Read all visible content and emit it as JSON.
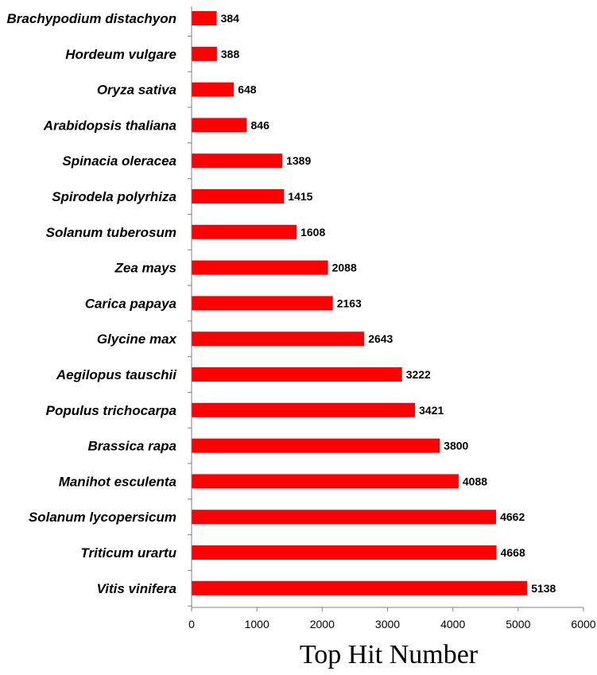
{
  "chart_data": {
    "type": "bar",
    "orientation": "horizontal",
    "categories": [
      "Brachypodium distachyon",
      "Hordeum vulgare",
      "Oryza sativa",
      "Arabidopsis thaliana",
      "Spinacia oleracea",
      "Spirodela polyrhiza",
      "Solanum tuberosum",
      "Zea mays",
      "Carica papaya",
      "Glycine max",
      "Aegilopus tauschii",
      "Populus trichocarpa",
      "Brassica rapa",
      "Manihot esculenta",
      "Solanum lycopersicum",
      "Triticum urartu",
      "Vitis vinifera"
    ],
    "values": [
      384,
      388,
      648,
      846,
      1389,
      1415,
      1608,
      2088,
      2163,
      2643,
      3222,
      3421,
      3800,
      4088,
      4662,
      4668,
      5138
    ],
    "data_labels": [
      "384",
      "388",
      "648",
      "846",
      "1389",
      "1415",
      "1608",
      "2088",
      "2163",
      "2643",
      "3222",
      "3421",
      "3800",
      "4088",
      "4662",
      "4668",
      "5138"
    ],
    "xlabel": "Top Hit Number",
    "xlim": [
      0,
      6000
    ],
    "x_ticks": [
      0,
      1000,
      2000,
      3000,
      4000,
      5000,
      6000
    ],
    "x_tick_labels": [
      "0",
      "1000",
      "2000",
      "3000",
      "4000",
      "5000",
      "6000"
    ],
    "grid": false,
    "legend": "none",
    "bar_color": "#ff0000"
  }
}
